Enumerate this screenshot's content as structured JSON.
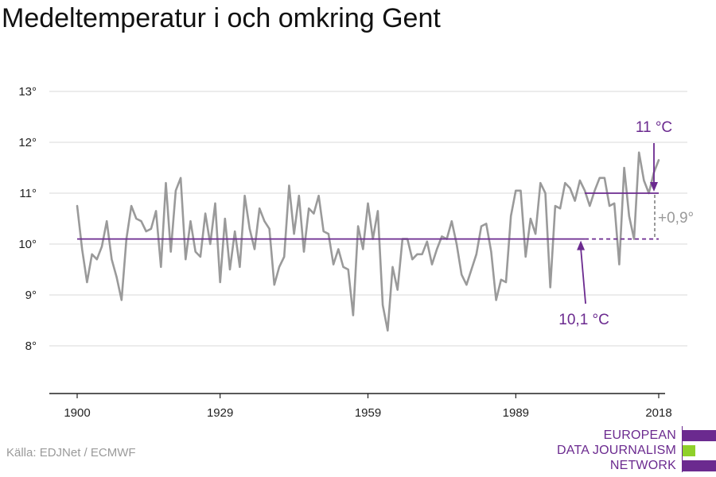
{
  "title": "Medeltemperatur i och omkring Gent",
  "source": "Källa: EDJNet / ECMWF",
  "logo": {
    "lines": [
      "EUROPEAN",
      "DATA JOURNALISM",
      "NETWORK"
    ],
    "colors": [
      "#6b2a8f",
      "#8fd02a",
      "#6b2a8f"
    ]
  },
  "colors": {
    "series": "#9a9a9a",
    "accent": "#6b2a8f",
    "grid": "#d9d9d9",
    "axis": "#222222",
    "delta": "#9a9a9a"
  },
  "chart_data": {
    "type": "line",
    "title": "Medeltemperatur i och omkring Gent",
    "xlabel": "",
    "ylabel": "",
    "xlim": [
      1900,
      2018
    ],
    "ylim": [
      7,
      13
    ],
    "y_ticks": [
      8,
      9,
      10,
      11,
      12,
      13
    ],
    "y_tick_labels": [
      "8°",
      "9°",
      "10°",
      "11°",
      "12°",
      "13°"
    ],
    "x_ticks": [
      1900,
      1929,
      1959,
      1989,
      2018
    ],
    "x_tick_labels": [
      "1900",
      "1929",
      "1959",
      "1989",
      "2018"
    ],
    "grid": true,
    "x": [
      1900,
      1901,
      1902,
      1903,
      1904,
      1905,
      1906,
      1907,
      1908,
      1909,
      1910,
      1911,
      1912,
      1913,
      1914,
      1915,
      1916,
      1917,
      1918,
      1919,
      1920,
      1921,
      1922,
      1923,
      1924,
      1925,
      1926,
      1927,
      1928,
      1929,
      1930,
      1931,
      1932,
      1933,
      1934,
      1935,
      1936,
      1937,
      1938,
      1939,
      1940,
      1941,
      1942,
      1943,
      1944,
      1945,
      1946,
      1947,
      1948,
      1949,
      1950,
      1951,
      1952,
      1953,
      1954,
      1955,
      1956,
      1957,
      1958,
      1959,
      1960,
      1961,
      1962,
      1963,
      1964,
      1965,
      1966,
      1967,
      1968,
      1969,
      1970,
      1971,
      1972,
      1973,
      1974,
      1975,
      1976,
      1977,
      1978,
      1979,
      1980,
      1981,
      1982,
      1983,
      1984,
      1985,
      1986,
      1987,
      1988,
      1989,
      1990,
      1991,
      1992,
      1993,
      1994,
      1995,
      1996,
      1997,
      1998,
      1999,
      2000,
      2001,
      2002,
      2003,
      2004,
      2005,
      2006,
      2007,
      2008,
      2009,
      2010,
      2011,
      2012,
      2013,
      2014,
      2015,
      2016,
      2017,
      2018
    ],
    "series": [
      {
        "values": [
          10.75,
          9.9,
          9.25,
          9.8,
          9.7,
          9.95,
          10.45,
          9.7,
          9.35,
          8.9,
          10.1,
          10.75,
          10.5,
          10.45,
          10.25,
          10.3,
          10.65,
          9.55,
          11.2,
          9.85,
          11.05,
          11.3,
          9.7,
          10.45,
          9.85,
          9.75,
          10.6,
          10.0,
          10.8,
          9.25,
          10.5,
          9.5,
          10.25,
          9.55,
          10.95,
          10.3,
          9.9,
          10.7,
          10.45,
          10.3,
          9.2,
          9.55,
          9.75,
          11.15,
          10.2,
          10.95,
          9.85,
          10.7,
          10.6,
          10.95,
          10.25,
          10.2,
          9.6,
          9.9,
          9.55,
          9.5,
          8.6,
          10.35,
          9.9,
          10.8,
          10.1,
          10.65,
          8.8,
          8.3,
          9.55,
          9.1,
          10.1,
          10.1,
          9.7,
          9.8,
          9.8,
          10.05,
          9.6,
          9.9,
          10.15,
          10.1,
          10.45,
          10.0,
          9.4,
          9.2,
          9.5,
          9.8,
          10.35,
          10.4,
          9.85,
          8.9,
          9.3,
          9.25,
          10.55,
          11.05,
          11.05,
          9.75,
          10.5,
          10.2,
          11.2,
          11.0,
          9.15,
          10.75,
          10.7,
          11.2,
          11.1,
          10.85,
          11.25,
          11.05,
          10.75,
          11.05,
          11.3,
          11.3,
          10.75,
          10.8,
          9.6,
          11.5,
          10.55,
          10.1,
          11.8,
          11.25,
          11.0,
          11.4,
          11.65
        ]
      }
    ],
    "annotations": {
      "baseline": {
        "value": 10.1,
        "label": "10,1 °C",
        "from": 1900,
        "solid_to": 2003,
        "to": 2018
      },
      "recent": {
        "value": 11,
        "label": "11 °C",
        "from": 2003,
        "to": 2018
      },
      "delta": {
        "label": "+0,9°"
      }
    }
  }
}
